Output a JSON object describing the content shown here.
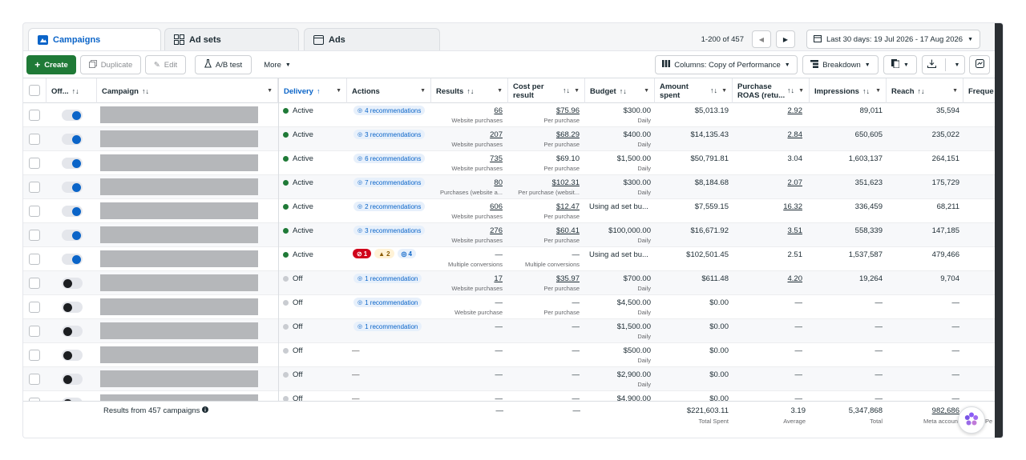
{
  "tabs": [
    {
      "label": "Campaigns",
      "icon": "campaigns-icon",
      "active": true
    },
    {
      "label": "Ad sets",
      "icon": "adsets-icon",
      "active": false
    },
    {
      "label": "Ads",
      "icon": "ads-icon",
      "active": false
    }
  ],
  "pagination": {
    "label": "1-200 of 457"
  },
  "date_range": {
    "label": "Last 30 days: 19 Jul 2026 - 17 Aug 2026"
  },
  "toolbar": {
    "create": "Create",
    "duplicate": "Duplicate",
    "edit": "Edit",
    "ab_test": "A/B test",
    "more": "More",
    "columns": "Columns: Copy of Performance",
    "breakdown": "Breakdown"
  },
  "headers": {
    "offon": "Off...",
    "campaign": "Campaign",
    "delivery": "Delivery",
    "actions": "Actions",
    "results": "Results",
    "cpr": "Cost per result",
    "budget": "Budget",
    "amount": "Amount spent",
    "roas": "Purchase ROAS (retu...",
    "impressions": "Impressions",
    "reach": "Reach",
    "frequency": "Freque"
  },
  "rows": [
    {
      "on": true,
      "delivery": "Active",
      "status_color": "#1f7a37",
      "actions": "4 recommendations",
      "results": "66",
      "results_sub": "Website purchases",
      "cpr": "$75.96",
      "cpr_sub": "Per purchase",
      "budget": "$300.00",
      "budget_sub": "Daily",
      "amount": "$5,013.19",
      "roas": "2.92",
      "impressions": "89,011",
      "reach": "35,594"
    },
    {
      "on": true,
      "delivery": "Active",
      "status_color": "#1f7a37",
      "actions": "3 recommendations",
      "results": "207",
      "results_sub": "Website purchases",
      "cpr": "$68.29",
      "cpr_sub": "Per purchase",
      "budget": "$400.00",
      "budget_sub": "Daily",
      "amount": "$14,135.43",
      "roas": "2.84",
      "impressions": "650,605",
      "reach": "235,022"
    },
    {
      "on": true,
      "delivery": "Active",
      "status_color": "#1f7a37",
      "actions": "6 recommendations",
      "results": "735",
      "results_sub": "Website purchases",
      "cpr": "$69.10",
      "cpr_sub": "Per purchase",
      "budget": "$1,500.00",
      "budget_sub": "Daily",
      "amount": "$50,791.81",
      "roas": "3.04",
      "impressions": "1,603,137",
      "reach": "264,151"
    },
    {
      "on": true,
      "delivery": "Active",
      "status_color": "#1f7a37",
      "actions": "7 recommendations",
      "results": "80",
      "results_sub": "Purchases (website a...",
      "cpr": "$102.31",
      "cpr_sub": "Per purchase (websit...",
      "budget": "$300.00",
      "budget_sub": "Daily",
      "amount": "$8,184.68",
      "roas": "2.07",
      "impressions": "351,623",
      "reach": "175,729"
    },
    {
      "on": true,
      "delivery": "Active",
      "status_color": "#1f7a37",
      "actions": "2 recommendations",
      "results": "606",
      "results_sub": "Website purchases",
      "cpr": "$12.47",
      "cpr_sub": "Per purchase",
      "budget": "Using ad set bu...",
      "budget_sub": "",
      "amount": "$7,559.15",
      "roas": "16.32",
      "impressions": "336,459",
      "reach": "68,211"
    },
    {
      "on": true,
      "delivery": "Active",
      "status_color": "#1f7a37",
      "actions": "3 recommendations",
      "results": "276",
      "results_sub": "Website purchases",
      "cpr": "$60.41",
      "cpr_sub": "Per purchase",
      "budget": "$100,000.00",
      "budget_sub": "Daily",
      "amount": "$16,671.92",
      "roas": "3.51",
      "impressions": "558,339",
      "reach": "147,185"
    },
    {
      "on": true,
      "delivery": "Active",
      "status_color": "#1f7a37",
      "actions": "",
      "flags": {
        "errors": "1",
        "warnings": "2",
        "recs": "4"
      },
      "results": "—",
      "results_sub": "Multiple conversions",
      "cpr": "—",
      "cpr_sub": "Multiple conversions",
      "budget": "Using ad set bu...",
      "budget_sub": "",
      "amount": "$102,501.45",
      "roas": "2.51",
      "impressions": "1,537,587",
      "reach": "479,466"
    },
    {
      "on": false,
      "delivery": "Off",
      "status_color": "#c9ccd1",
      "actions": "1 recommendation",
      "results": "17",
      "results_sub": "Website purchases",
      "cpr": "$35.97",
      "cpr_sub": "Per purchase",
      "budget": "$700.00",
      "budget_sub": "Daily",
      "amount": "$611.48",
      "roas": "4.20",
      "impressions": "19,264",
      "reach": "9,704"
    },
    {
      "on": false,
      "delivery": "Off",
      "status_color": "#c9ccd1",
      "actions": "1 recommendation",
      "results": "—",
      "results_sub": "Website purchase",
      "cpr": "—",
      "cpr_sub": "Per purchase",
      "budget": "$4,500.00",
      "budget_sub": "Daily",
      "amount": "$0.00",
      "roas": "—",
      "impressions": "—",
      "reach": "—"
    },
    {
      "on": false,
      "delivery": "Off",
      "status_color": "#c9ccd1",
      "actions": "1 recommendation",
      "results": "—",
      "results_sub": "",
      "cpr": "—",
      "cpr_sub": "",
      "budget": "$1,500.00",
      "budget_sub": "Daily",
      "amount": "$0.00",
      "roas": "—",
      "impressions": "—",
      "reach": "—"
    },
    {
      "on": false,
      "delivery": "Off",
      "status_color": "#c9ccd1",
      "actions": "—",
      "results": "—",
      "results_sub": "",
      "cpr": "—",
      "cpr_sub": "",
      "budget": "$500.00",
      "budget_sub": "Daily",
      "amount": "$0.00",
      "roas": "—",
      "impressions": "—",
      "reach": "—"
    },
    {
      "on": false,
      "delivery": "Off",
      "status_color": "#c9ccd1",
      "actions": "—",
      "results": "—",
      "results_sub": "",
      "cpr": "—",
      "cpr_sub": "",
      "budget": "$2,900.00",
      "budget_sub": "Daily",
      "amount": "$0.00",
      "roas": "—",
      "impressions": "—",
      "reach": "—"
    },
    {
      "on": false,
      "delivery": "Off",
      "status_color": "#c9ccd1",
      "actions": "—",
      "results": "—",
      "results_sub": "",
      "cpr": "—",
      "cpr_sub": "",
      "budget": "$4,900.00",
      "budget_sub": "",
      "amount": "$0.00",
      "roas": "—",
      "impressions": "—",
      "reach": "—"
    }
  ],
  "footer": {
    "label": "Results from 457 campaigns",
    "results": "—",
    "cpr": "—",
    "amount": "$221,603.11",
    "amount_sub": "Total Spent",
    "roas": "3.19",
    "roas_sub": "Average",
    "impressions": "5,347,868",
    "impressions_sub": "Total",
    "reach": "982,686",
    "reach_sub": "Meta account",
    "frequency_partial": "Pe"
  },
  "colors": {
    "accent": "#0a64c8",
    "create_green": "#1f7a37",
    "active_green": "#1f7a37",
    "off_gray": "#c9ccd1"
  }
}
